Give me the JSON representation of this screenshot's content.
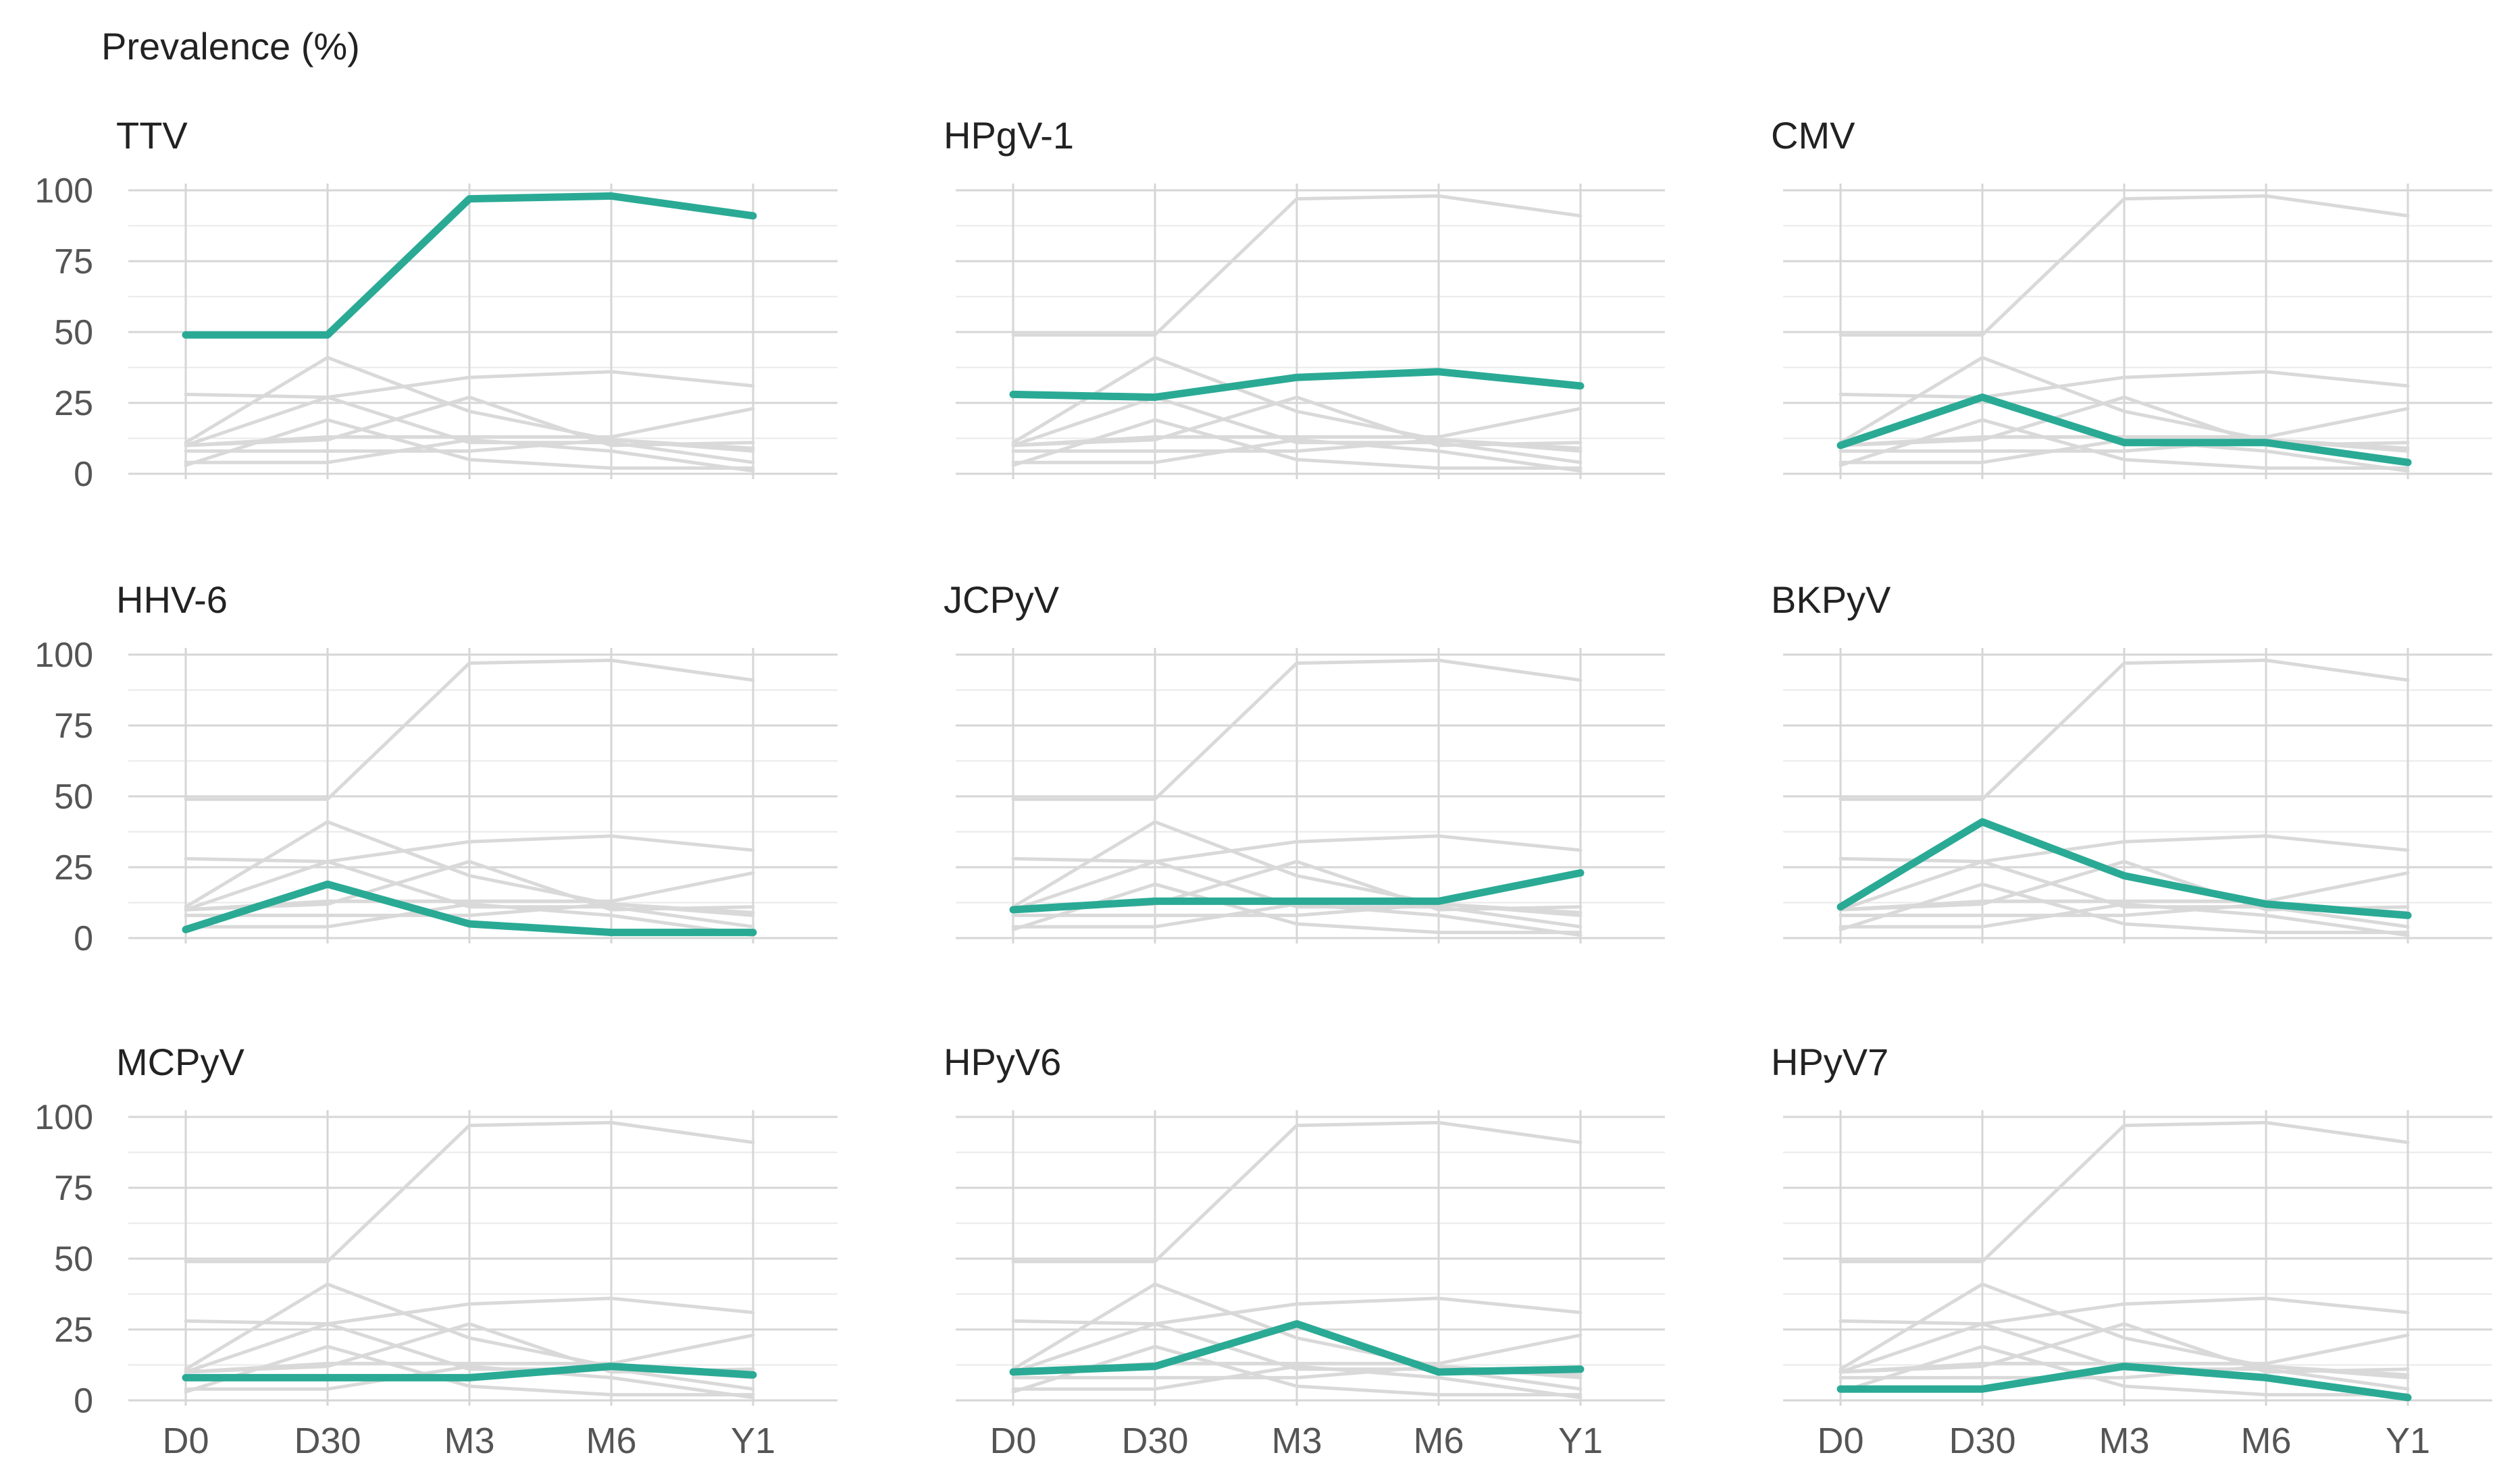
{
  "ylabel": "Prevalence (%)",
  "colors": {
    "highlight": "#2aaa95",
    "background_series": "#d9d9d9",
    "grid": "#d6d6d6"
  },
  "chart_data": {
    "type": "line",
    "layout": "small multiples 3x3 facets; each facet highlights one virus (teal) with all other viruses shown as light gray lines",
    "categories": [
      "D0",
      "D30",
      "M3",
      "M6",
      "Y1"
    ],
    "ylim": [
      0,
      100
    ],
    "yticks": [
      0,
      25,
      50,
      75,
      100
    ],
    "grid": true,
    "series": [
      {
        "name": "TTV",
        "values": [
          49,
          49,
          97,
          98,
          91
        ]
      },
      {
        "name": "HPgV-1",
        "values": [
          28,
          27,
          34,
          36,
          31
        ]
      },
      {
        "name": "CMV",
        "values": [
          10,
          27,
          11,
          11,
          4
        ]
      },
      {
        "name": "HHV-6",
        "values": [
          3,
          19,
          5,
          2,
          2
        ]
      },
      {
        "name": "JCPyV",
        "values": [
          10,
          13,
          13,
          13,
          23
        ]
      },
      {
        "name": "BKPyV",
        "values": [
          11,
          41,
          22,
          12,
          8
        ]
      },
      {
        "name": "MCPyV",
        "values": [
          8,
          8,
          8,
          12,
          9
        ]
      },
      {
        "name": "HPyV6",
        "values": [
          10,
          12,
          27,
          10,
          11
        ]
      },
      {
        "name": "HPyV7",
        "values": [
          4,
          4,
          12,
          8,
          1
        ]
      }
    ]
  }
}
